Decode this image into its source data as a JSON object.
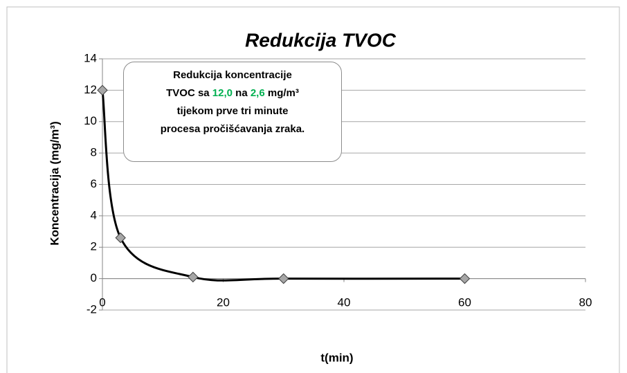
{
  "chart_data": {
    "type": "line",
    "title": "Redukcija TVOC",
    "x_label": "t(min)",
    "y_label": "Koncentracija (mg/m³)",
    "x": [
      0,
      3,
      15,
      30,
      60
    ],
    "series": [
      {
        "color": "#000000",
        "values": [
          12,
          2.6,
          0.1,
          0,
          0
        ]
      }
    ],
    "smooth": true,
    "xlim": [
      0,
      80
    ],
    "xticks": [
      0,
      20,
      40,
      60,
      80
    ],
    "ylim": [
      -2,
      14
    ],
    "yticks": [
      -2,
      0,
      2,
      4,
      6,
      8,
      10,
      12,
      14
    ],
    "grid": true,
    "annotation": [
      {
        "text": "Redukcija koncentracije TVOC  sa "
      },
      {
        "text": "12,0",
        "color": "#00b050"
      },
      {
        "text": " na "
      },
      {
        "text": "2,6",
        "color": "#00b050"
      },
      {
        "text": " mg/m³ tijekom prve tri minute procesa pročišćavanja zraka."
      }
    ]
  }
}
